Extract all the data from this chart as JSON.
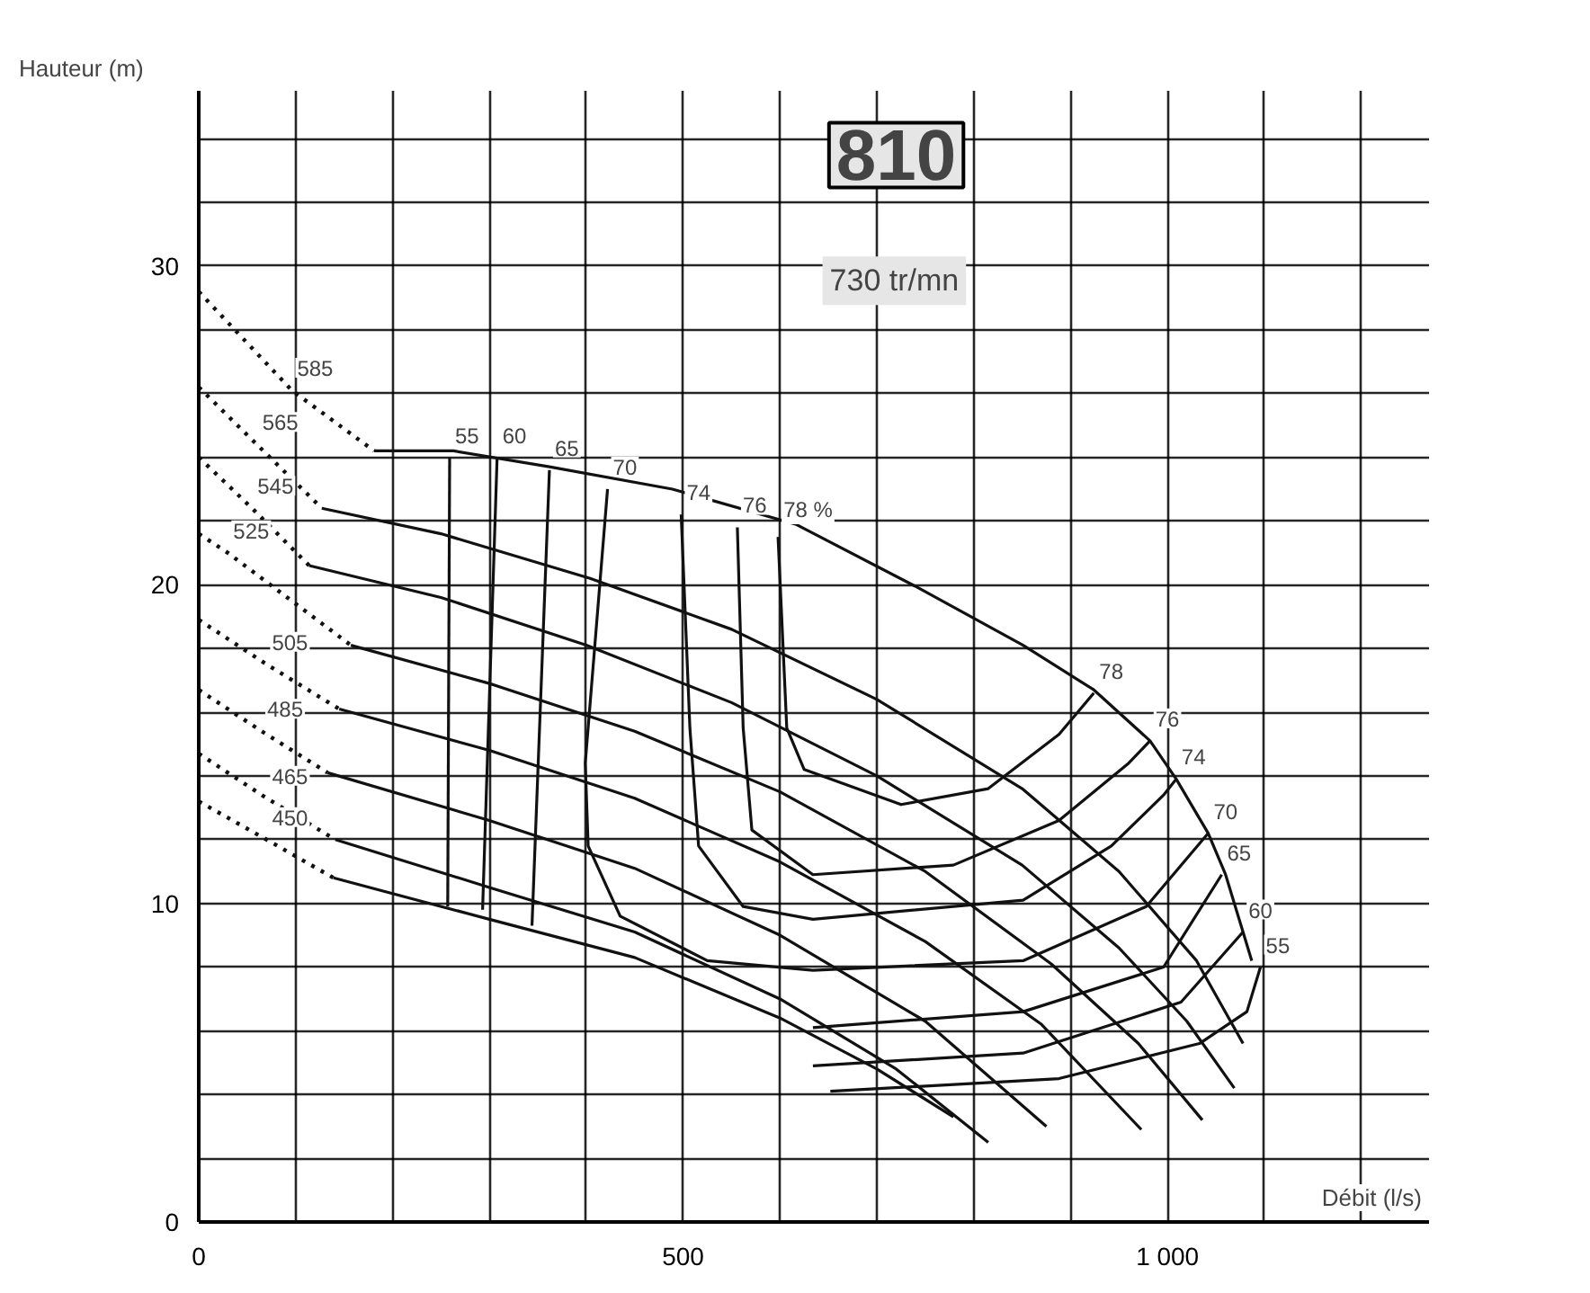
{
  "chart_data": {
    "type": "line",
    "xlabel": "Débit (l/s)",
    "ylabel": "Hauteur (m)",
    "xlim": [
      0,
      1270
    ],
    "ylim": [
      0,
      35.5
    ],
    "xticks": [
      0,
      {
        "value": 100,
        "label": null
      },
      {
        "value": 200,
        "label": null
      },
      {
        "value": 300,
        "label": null
      },
      {
        "value": 400,
        "label": null
      },
      500,
      {
        "value": 600,
        "label": null
      },
      {
        "value": 700,
        "label": null
      },
      {
        "value": 800,
        "label": null
      },
      {
        "value": 900,
        "label": null
      },
      {
        "value": 1000,
        "label": "1 000"
      },
      {
        "value": 1100,
        "label": null
      },
      {
        "value": 1200,
        "label": null
      }
    ],
    "yticks": [
      0,
      {
        "value": 2,
        "label": null
      },
      {
        "value": 4,
        "label": null
      },
      {
        "value": 6,
        "label": null
      },
      {
        "value": 8,
        "label": null
      },
      10,
      {
        "value": 12,
        "label": null
      },
      {
        "value": 14,
        "label": null
      },
      {
        "value": 16,
        "label": null
      },
      {
        "value": 18,
        "label": null
      },
      20,
      {
        "value": 22,
        "label": null
      },
      {
        "value": 24,
        "label": null
      },
      {
        "value": 26,
        "label": null
      },
      {
        "value": 28,
        "label": null
      },
      30,
      {
        "value": 32,
        "label": null
      },
      {
        "value": 34,
        "label": null
      }
    ],
    "grid": true,
    "line_style": "solid",
    "marker": "none",
    "series": [
      {
        "color": "#111111",
        "line_style": "dotted",
        "x": [
          0,
          96,
          181
        ],
        "values": [
          29.2,
          26.1,
          24.2
        ]
      },
      {
        "color": "#111111",
        "line_style": "dotted",
        "x": [
          0,
          60,
          127
        ],
        "values": [
          26.2,
          24.4,
          22.4
        ]
      },
      {
        "color": "#111111",
        "line_style": "dotted",
        "x": [
          0,
          55,
          114
        ],
        "values": [
          24.0,
          22.4,
          20.6
        ]
      },
      {
        "color": "#111111",
        "line_style": "dotted",
        "x": [
          0,
          30,
          157
        ],
        "values": [
          21.6,
          21.0,
          18.1
        ]
      },
      {
        "color": "#111111",
        "line_style": "dotted",
        "x": [
          0,
          70,
          145
        ],
        "values": [
          18.9,
          17.5,
          16.1
        ]
      },
      {
        "color": "#111111",
        "line_style": "dotted",
        "x": [
          0,
          65,
          133
        ],
        "values": [
          16.7,
          15.4,
          14.1
        ]
      },
      {
        "color": "#111111",
        "line_style": "dotted",
        "x": [
          0,
          70,
          141
        ],
        "values": [
          14.7,
          13.3,
          12.0
        ]
      },
      {
        "color": "#111111",
        "line_style": "dotted",
        "x": [
          0,
          70,
          139
        ],
        "values": [
          13.2,
          12.0,
          10.8
        ]
      },
      {
        "color": "#111111",
        "x": [
          181,
          263,
          362,
          489,
          616,
          743,
          851,
          924,
          982,
          1009,
          1042,
          1060,
          1078,
          1087
        ],
        "values": [
          24.2,
          24.2,
          23.7,
          23.0,
          21.9,
          19.9,
          18.1,
          16.7,
          15.1,
          13.9,
          12.2,
          10.9,
          9.1,
          8.2
        ]
      },
      {
        "color": "#111111",
        "x": [
          127,
          250,
          404,
          550,
          700,
          850,
          950,
          1030,
          1078
        ],
        "values": [
          22.4,
          21.6,
          20.2,
          18.6,
          16.4,
          13.6,
          11.0,
          8.2,
          5.6
        ]
      },
      {
        "color": "#111111",
        "x": [
          114,
          250,
          400,
          550,
          700,
          850,
          950,
          1020,
          1069
        ],
        "values": [
          20.6,
          19.6,
          18.1,
          16.3,
          14.0,
          11.2,
          8.6,
          6.3,
          4.2
        ]
      },
      {
        "color": "#111111",
        "x": [
          157,
          300,
          450,
          600,
          750,
          880,
          970,
          1036
        ],
        "values": [
          18.1,
          16.9,
          15.4,
          13.5,
          11.0,
          8.1,
          5.6,
          3.2
        ]
      },
      {
        "color": "#111111",
        "x": [
          145,
          300,
          450,
          600,
          750,
          870,
          973
        ],
        "values": [
          16.1,
          14.8,
          13.3,
          11.3,
          8.8,
          6.2,
          2.9
        ]
      },
      {
        "color": "#111111",
        "x": [
          133,
          300,
          450,
          600,
          750,
          875
        ],
        "values": [
          14.1,
          12.6,
          11.1,
          9.0,
          6.3,
          3.0
        ]
      },
      {
        "color": "#111111",
        "x": [
          141,
          300,
          450,
          600,
          720,
          815
        ],
        "values": [
          12.0,
          10.5,
          9.1,
          7.0,
          4.8,
          2.5
        ]
      },
      {
        "color": "#111111",
        "x": [
          139,
          300,
          450,
          600,
          700,
          779
        ],
        "values": [
          10.8,
          9.5,
          8.3,
          6.4,
          4.8,
          3.3
        ]
      },
      {
        "color": "#111111",
        "x": [
          259,
          257
        ],
        "values": [
          24.0,
          9.9
        ]
      },
      {
        "color": "#111111",
        "x": [
          652,
          888,
          1033,
          1082,
          1096
        ],
        "values": [
          4.1,
          4.5,
          5.6,
          6.6,
          8.0
        ]
      },
      {
        "color": "#111111",
        "x": [
          308,
          293
        ],
        "values": [
          24.0,
          9.8
        ]
      },
      {
        "color": "#111111",
        "x": [
          634,
          851,
          1014,
          1078
        ],
        "values": [
          4.9,
          5.3,
          6.9,
          9.1
        ]
      },
      {
        "color": "#111111",
        "x": [
          362,
          344
        ],
        "values": [
          23.6,
          9.3
        ]
      },
      {
        "color": "#111111",
        "x": [
          634,
          851,
          996,
          1056
        ],
        "values": [
          6.1,
          6.6,
          8.0,
          10.9
        ]
      },
      {
        "color": "#111111",
        "x": [
          422,
          399,
          402,
          435,
          525,
          634,
          851,
          978,
          1042
        ],
        "values": [
          23.0,
          14.4,
          11.8,
          9.6,
          8.2,
          7.9,
          8.2,
          9.9,
          12.2
        ]
      },
      {
        "color": "#111111",
        "x": [
          498,
          507,
          516,
          562,
          634,
          851,
          942,
          996,
          1009
        ],
        "values": [
          22.2,
          15.5,
          11.8,
          9.9,
          9.5,
          10.1,
          11.8,
          13.4,
          13.9
        ]
      },
      {
        "color": "#111111",
        "x": [
          556,
          562,
          571,
          634,
          779,
          888,
          960,
          982
        ],
        "values": [
          21.8,
          15.5,
          12.3,
          10.9,
          11.2,
          12.6,
          14.4,
          15.1
        ]
      },
      {
        "color": "#111111",
        "x": [
          598,
          607,
          625,
          725,
          815,
          888,
          924
        ],
        "values": [
          21.5,
          15.5,
          14.2,
          13.1,
          13.6,
          15.3,
          16.6
        ]
      }
    ],
    "annotations": [
      "810",
      "730 tr/mn",
      {
        "text": "585",
        "x": 96,
        "y": 26.1
      },
      {
        "text": "565",
        "x": 60,
        "y": 24.4
      },
      {
        "text": "545",
        "x": 55,
        "y": 22.4
      },
      {
        "text": "525",
        "x": 30,
        "y": 21.0
      },
      {
        "text": "505",
        "x": 70,
        "y": 17.5
      },
      {
        "text": "485",
        "x": 65,
        "y": 15.4
      },
      {
        "text": "465",
        "x": 70,
        "y": 13.3
      },
      {
        "text": "450",
        "x": 70,
        "y": 12.0
      },
      {
        "text": "55",
        "x": 259,
        "y": 24.0
      },
      {
        "text": "60",
        "x": 308,
        "y": 24.0
      },
      {
        "text": "65",
        "x": 362,
        "y": 23.6
      },
      {
        "text": "70",
        "x": 422,
        "y": 23.0
      },
      {
        "text": "74",
        "x": 498,
        "y": 22.2
      },
      {
        "text": "76",
        "x": 556,
        "y": 21.8
      },
      {
        "text": "78 %",
        "x": 598,
        "y": 21.5
      },
      {
        "text": "78",
        "x": 924,
        "y": 16.6
      },
      {
        "text": "76",
        "x": 982,
        "y": 15.1
      },
      {
        "text": "74",
        "x": 1009,
        "y": 13.9
      },
      {
        "text": "70",
        "x": 1042,
        "y": 12.2
      },
      {
        "text": "65",
        "x": 1056,
        "y": 10.9
      },
      {
        "text": "60",
        "x": 1078,
        "y": 9.1
      },
      {
        "text": "55",
        "x": 1096,
        "y": 8.0
      }
    ]
  }
}
